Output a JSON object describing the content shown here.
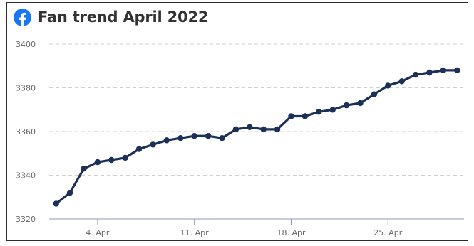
{
  "header": {
    "icon": "facebook-icon",
    "title": "Fan trend April 2022"
  },
  "colors": {
    "line": "#1b2f57",
    "grid": "#cfcfcf",
    "facebook": "#1877f2"
  },
  "chart_data": {
    "type": "line",
    "title": "Fan trend April 2022",
    "xlabel": "",
    "ylabel": "",
    "x_unit": "day of April 2022",
    "x": [
      1,
      2,
      3,
      4,
      5,
      6,
      7,
      8,
      9,
      10,
      11,
      12,
      13,
      14,
      15,
      16,
      17,
      18,
      19,
      20,
      21,
      22,
      23,
      24,
      25,
      26,
      27,
      28,
      29,
      30
    ],
    "series": [
      {
        "values": [
          3327,
          3332,
          3343,
          3346,
          3347,
          3348,
          3352,
          3354,
          3356,
          3357,
          3358,
          3358,
          3357,
          3361,
          3362,
          3361,
          3361,
          3367,
          3367,
          3369,
          3370,
          3372,
          3373,
          3377,
          3381,
          3383,
          3386,
          3387,
          3388,
          3388
        ]
      }
    ],
    "ylim": [
      3320,
      3400
    ],
    "y_ticks": [
      "3320",
      "3340",
      "3360",
      "3380",
      "3400"
    ],
    "x_ticks": [
      {
        "label": "4. Apr",
        "day": 4
      },
      {
        "label": "11. Apr",
        "day": 11
      },
      {
        "label": "18. Apr",
        "day": 18
      },
      {
        "label": "25. Apr",
        "day": 25
      }
    ],
    "grid": true,
    "legend": "none"
  }
}
